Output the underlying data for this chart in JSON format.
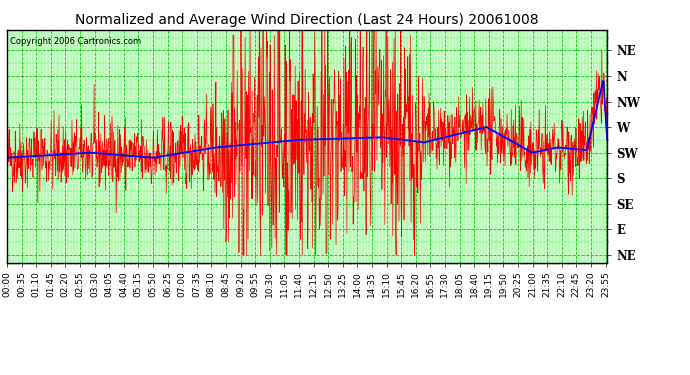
{
  "title": "Normalized and Average Wind Direction (Last 24 Hours) 20061008",
  "copyright": "Copyright 2006 Cartronics.com",
  "background_color": "#ffffff",
  "plot_bg_color": "#ccffcc",
  "grid_color": "#00cc00",
  "y_labels": [
    "NE",
    "N",
    "NW",
    "W",
    "SW",
    "S",
    "SE",
    "E",
    "NE"
  ],
  "y_values": [
    8,
    7,
    6,
    5,
    4,
    3,
    2,
    1,
    0
  ],
  "x_tick_labels": [
    "00:00",
    "00:35",
    "01:10",
    "01:45",
    "02:20",
    "02:55",
    "03:30",
    "04:05",
    "04:40",
    "05:15",
    "05:50",
    "06:25",
    "07:00",
    "07:35",
    "08:10",
    "08:45",
    "09:20",
    "09:55",
    "10:30",
    "11:05",
    "11:40",
    "12:15",
    "12:50",
    "13:25",
    "14:00",
    "14:35",
    "15:10",
    "15:45",
    "16:20",
    "16:55",
    "17:30",
    "18:05",
    "18:40",
    "19:15",
    "19:50",
    "20:25",
    "21:00",
    "21:35",
    "22:10",
    "22:45",
    "23:20",
    "23:55"
  ],
  "red_line_color": "#ff0000",
  "blue_line_color": "#0000ff",
  "title_fontsize": 10,
  "tick_fontsize": 6.5,
  "ylabel_fontsize": 8.5
}
